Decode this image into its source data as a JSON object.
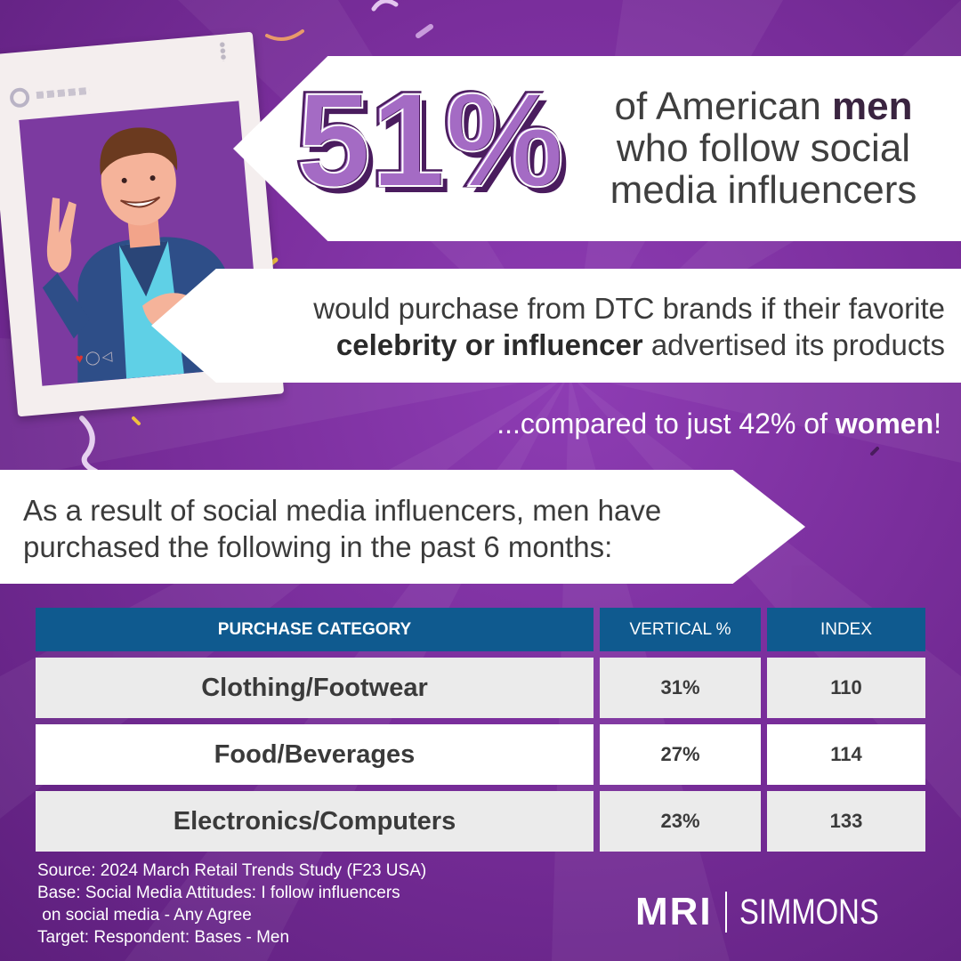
{
  "hero": {
    "big_stat": "51%",
    "headline_line1": "of American ",
    "headline_bold": "men",
    "headline_line2": "who follow social",
    "headline_line3": "media influencers"
  },
  "subhead": {
    "line1": "would purchase from DTC brands if their favorite",
    "bold": "celebrity or influencer",
    "line2_rest": " advertised its products"
  },
  "compare": {
    "prefix": "...compared to just 42% of ",
    "bold": "women",
    "suffix": "!"
  },
  "result_text": {
    "line1": "As a result of social media influencers, men have",
    "line2": "purchased the following in the past 6 months:"
  },
  "table": {
    "headers": [
      "PURCHASE CATEGORY",
      "VERTICAL %",
      "INDEX"
    ],
    "rows": [
      {
        "category": "Clothing/Footwear",
        "vertical": "31%",
        "index": "110"
      },
      {
        "category": "Food/Beverages",
        "vertical": "27%",
        "index": "114"
      },
      {
        "category": "Electronics/Computers",
        "vertical": "23%",
        "index": "133"
      }
    ]
  },
  "footnote": {
    "line1": "Source: 2024 March Retail Trends Study (F23 USA)",
    "line2": "Base: Social Media Attitudes: I follow influencers",
    "line3": " on social media - Any Agree",
    "line4": "Target: Respondent: Bases - Men"
  },
  "logo": {
    "left": "MRI",
    "right": "SIMMONS"
  },
  "icons": {
    "frame_actions": [
      "heart-icon",
      "comment-icon",
      "share-icon"
    ]
  },
  "colors": {
    "background": "#7a2e9c",
    "banner": "#ffffff",
    "banner_shadow": "#4a1c5e",
    "stat_fill": "#a46bc4",
    "stat_outline": "#4a1c5e",
    "table_header": "#0f5a8f",
    "row_alt": "#ebebeb"
  }
}
